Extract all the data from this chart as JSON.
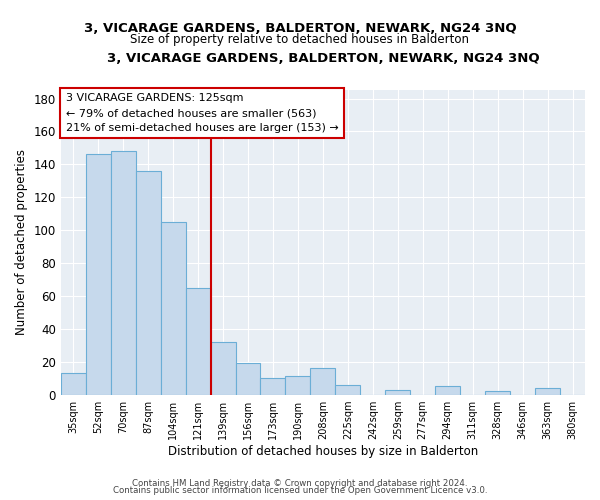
{
  "title": "3, VICARAGE GARDENS, BALDERTON, NEWARK, NG24 3NQ",
  "subtitle": "Size of property relative to detached houses in Balderton",
  "xlabel": "Distribution of detached houses by size in Balderton",
  "ylabel": "Number of detached properties",
  "bar_color": "#c6d9ec",
  "bar_edge_color": "#6baed6",
  "highlight_line_color": "#cc0000",
  "categories": [
    "35sqm",
    "52sqm",
    "70sqm",
    "87sqm",
    "104sqm",
    "121sqm",
    "139sqm",
    "156sqm",
    "173sqm",
    "190sqm",
    "208sqm",
    "225sqm",
    "242sqm",
    "259sqm",
    "277sqm",
    "294sqm",
    "311sqm",
    "328sqm",
    "346sqm",
    "363sqm",
    "380sqm"
  ],
  "values": [
    13,
    146,
    148,
    136,
    105,
    65,
    32,
    19,
    10,
    11,
    16,
    6,
    0,
    3,
    0,
    5,
    0,
    2,
    0,
    4,
    0
  ],
  "ylim": [
    0,
    185
  ],
  "yticks": [
    0,
    20,
    40,
    60,
    80,
    100,
    120,
    140,
    160,
    180
  ],
  "annotation_title": "3 VICARAGE GARDENS: 125sqm",
  "annotation_line1": "← 79% of detached houses are smaller (563)",
  "annotation_line2": "21% of semi-detached houses are larger (153) →",
  "footnote1": "Contains HM Land Registry data © Crown copyright and database right 2024.",
  "footnote2": "Contains public sector information licensed under the Open Government Licence v3.0.",
  "background_color": "#e8eef4"
}
